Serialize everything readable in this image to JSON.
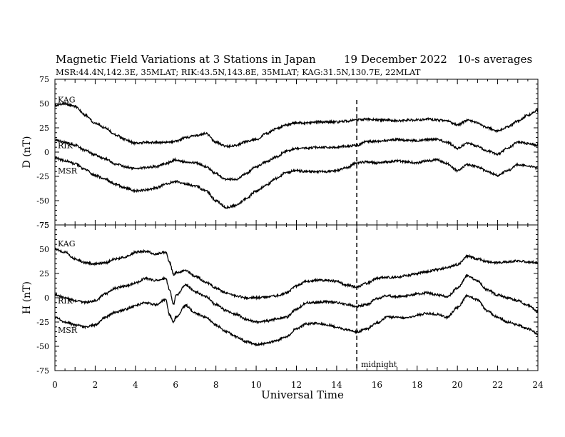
{
  "header": {
    "title": "Magnetic Field Variations at 3 Stations in Japan",
    "date": "19 December 2022",
    "averaging": "10-s averages",
    "stations_line": "MSR:44.4N,142.3E, 35MLAT;  RIK:43.5N,143.8E, 35MLAT;  KAG:31.5N,130.7E, 22MLAT"
  },
  "chart_data": [
    {
      "type": "line",
      "panel": "D",
      "ylabel": "D (nT)",
      "ylim": [
        -75,
        75
      ],
      "yticks": [
        "75",
        "50",
        "25",
        "0",
        "-25",
        "-50",
        "-75"
      ],
      "xlim": [
        0,
        24
      ],
      "grid": false,
      "series": [
        {
          "name": "KAG",
          "x": [
            0,
            0.5,
            1,
            1.5,
            2,
            2.5,
            3,
            3.5,
            4,
            4.5,
            5,
            5.5,
            6,
            6.5,
            7,
            7.5,
            8,
            8.5,
            9,
            9.5,
            10,
            10.5,
            11,
            11.5,
            12,
            12.5,
            13,
            13.5,
            14,
            14.5,
            15,
            15.5,
            16,
            16.5,
            17,
            17.5,
            18,
            18.5,
            19,
            19.5,
            20,
            20.5,
            21,
            21.5,
            22,
            22.5,
            23,
            23.5,
            24
          ],
          "y": [
            48,
            50,
            47,
            38,
            30,
            25,
            18,
            13,
            9,
            10,
            10,
            10,
            11,
            15,
            17,
            19,
            10,
            6,
            7,
            11,
            13,
            19,
            24,
            28,
            30,
            30,
            31,
            31,
            31,
            32,
            33,
            34,
            33,
            33,
            32,
            33,
            33,
            34,
            33,
            32,
            28,
            33,
            30,
            25,
            22,
            26,
            32,
            38,
            43
          ]
        },
        {
          "name": "RIK",
          "x": [
            0,
            0.5,
            1,
            1.5,
            2,
            2.5,
            3,
            3.5,
            4,
            4.5,
            5,
            5.5,
            6,
            6.5,
            7,
            7.5,
            8,
            8.5,
            9,
            9.5,
            10,
            10.5,
            11,
            11.5,
            12,
            12.5,
            13,
            13.5,
            14,
            14.5,
            15,
            15.5,
            16,
            16.5,
            17,
            17.5,
            18,
            18.5,
            19,
            19.5,
            20,
            20.5,
            21,
            21.5,
            22,
            22.5,
            23,
            23.5,
            24
          ],
          "y": [
            13,
            10,
            7,
            2,
            -3,
            -7,
            -12,
            -15,
            -17,
            -16,
            -15,
            -12,
            -8,
            -10,
            -11,
            -15,
            -22,
            -28,
            -28,
            -22,
            -15,
            -10,
            -5,
            1,
            4,
            4,
            5,
            5,
            5,
            6,
            7,
            11,
            11,
            12,
            13,
            12,
            12,
            13,
            13,
            10,
            4,
            9,
            6,
            1,
            -2,
            4,
            10,
            9,
            7
          ]
        },
        {
          "name": "MSR",
          "x": [
            0,
            0.5,
            1,
            1.5,
            2,
            2.5,
            3,
            3.5,
            4,
            4.5,
            5,
            5.5,
            6,
            6.5,
            7,
            7.5,
            8,
            8.5,
            9,
            9.5,
            10,
            10.5,
            11,
            11.5,
            12,
            12.5,
            13,
            13.5,
            14,
            14.5,
            15,
            15.5,
            16,
            16.5,
            17,
            17.5,
            18,
            18.5,
            19,
            19.5,
            20,
            20.5,
            21,
            21.5,
            22,
            22.5,
            23,
            23.5,
            24
          ],
          "y": [
            -6,
            -9,
            -12,
            -18,
            -24,
            -28,
            -33,
            -37,
            -40,
            -39,
            -37,
            -33,
            -30,
            -33,
            -35,
            -40,
            -50,
            -57,
            -55,
            -48,
            -40,
            -34,
            -27,
            -21,
            -19,
            -20,
            -20,
            -20,
            -19,
            -16,
            -11,
            -10,
            -11,
            -10,
            -9,
            -10,
            -11,
            -9,
            -8,
            -12,
            -19,
            -13,
            -15,
            -20,
            -24,
            -19,
            -13,
            -14,
            -17
          ]
        }
      ],
      "series_labels": [
        "KAG",
        "RIK",
        "MSR"
      ]
    },
    {
      "type": "line",
      "panel": "H",
      "ylabel": "H (nT)",
      "xlabel": "Universal Time",
      "ylim": [
        -75,
        75
      ],
      "yticks": [
        "75",
        "50",
        "25",
        "0",
        "-25",
        "-50",
        "-75"
      ],
      "xlim": [
        0,
        24
      ],
      "xticks": [
        "0",
        "2",
        "4",
        "6",
        "8",
        "10",
        "12",
        "14",
        "16",
        "18",
        "20",
        "22",
        "24"
      ],
      "grid": false,
      "series": [
        {
          "name": "KAG",
          "x": [
            0,
            0.5,
            1,
            1.5,
            2,
            2.5,
            3,
            3.5,
            4,
            4.5,
            5,
            5.5,
            5.7,
            5.9,
            6,
            6.5,
            7,
            7.5,
            8,
            8.5,
            9,
            9.5,
            10,
            10.5,
            11,
            11.5,
            12,
            12.5,
            13,
            13.5,
            14,
            14.5,
            15,
            15.5,
            16,
            16.5,
            17,
            17.5,
            18,
            18.5,
            19,
            19.5,
            20,
            20.5,
            21,
            21.5,
            22,
            22.5,
            23,
            23.5,
            24
          ],
          "y": [
            50,
            47,
            40,
            36,
            35,
            36,
            40,
            42,
            47,
            48,
            45,
            47,
            36,
            24,
            26,
            28,
            22,
            16,
            10,
            5,
            2,
            0,
            0,
            1,
            2,
            5,
            12,
            17,
            18,
            18,
            17,
            13,
            11,
            15,
            20,
            21,
            21,
            23,
            25,
            27,
            29,
            31,
            34,
            43,
            40,
            37,
            36,
            37,
            38,
            37,
            36
          ]
        },
        {
          "name": "RIK",
          "x": [
            0,
            0.5,
            1,
            1.5,
            2,
            2.5,
            3,
            3.5,
            4,
            4.5,
            5,
            5.5,
            5.7,
            5.9,
            6,
            6.5,
            7,
            7.5,
            8,
            8.5,
            9,
            9.5,
            10,
            10.5,
            11,
            11.5,
            12,
            12.5,
            13,
            13.5,
            14,
            14.5,
            15,
            15.5,
            16,
            16.5,
            17,
            17.5,
            18,
            18.5,
            19,
            19.5,
            20,
            20.5,
            21,
            21.5,
            22,
            22.5,
            23,
            23.5,
            24
          ],
          "y": [
            3,
            0,
            -3,
            -5,
            -3,
            4,
            10,
            12,
            15,
            20,
            18,
            20,
            8,
            -7,
            2,
            13,
            6,
            1,
            -7,
            -13,
            -17,
            -22,
            -25,
            -24,
            -22,
            -20,
            -12,
            -5,
            -5,
            -4,
            -5,
            -7,
            -9,
            -7,
            -1,
            2,
            1,
            2,
            4,
            5,
            3,
            1,
            10,
            23,
            17,
            8,
            3,
            0,
            -3,
            -8,
            -14
          ]
        },
        {
          "name": "MSR",
          "x": [
            0,
            0.5,
            1,
            1.5,
            2,
            2.5,
            3,
            3.5,
            4,
            4.5,
            5,
            5.5,
            5.7,
            5.9,
            6,
            6.5,
            7,
            7.5,
            8,
            8.5,
            9,
            9.5,
            10,
            10.5,
            11,
            11.5,
            12,
            12.5,
            13,
            13.5,
            14,
            14.5,
            15,
            15.5,
            16,
            16.5,
            17,
            17.5,
            18,
            18.5,
            19,
            19.5,
            20,
            20.5,
            21,
            21.5,
            22,
            22.5,
            23,
            23.5,
            24
          ],
          "y": [
            -20,
            -25,
            -28,
            -30,
            -28,
            -20,
            -15,
            -12,
            -8,
            -5,
            -7,
            -2,
            -18,
            -25,
            -20,
            -8,
            -16,
            -20,
            -28,
            -35,
            -40,
            -45,
            -48,
            -47,
            -44,
            -40,
            -32,
            -27,
            -26,
            -28,
            -30,
            -33,
            -35,
            -32,
            -26,
            -20,
            -20,
            -21,
            -18,
            -16,
            -17,
            -20,
            -10,
            2,
            -2,
            -14,
            -20,
            -25,
            -28,
            -32,
            -37
          ]
        }
      ],
      "series_labels": [
        "KAG",
        "RIK",
        "MSR"
      ],
      "annotation": "midnight"
    }
  ],
  "midnight_ut": 15
}
